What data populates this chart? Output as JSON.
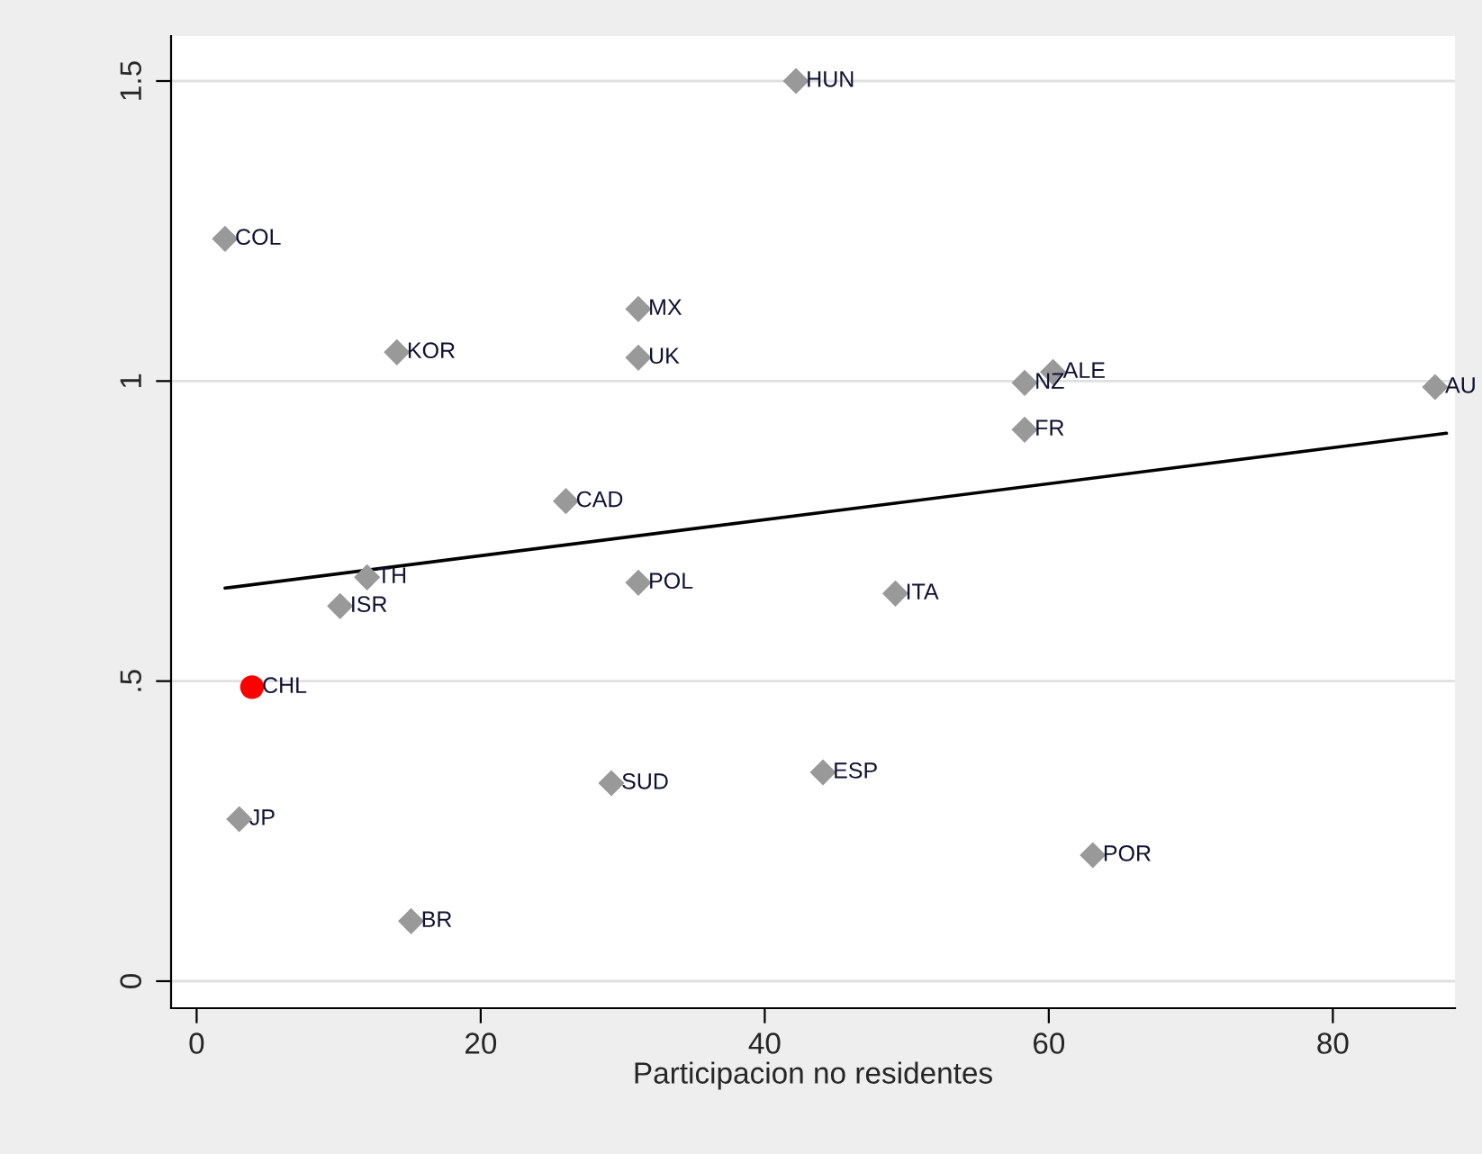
{
  "chart_data": {
    "type": "scatter",
    "xlabel": "Participacion no residentes",
    "xlim": [
      -1.8,
      88.6
    ],
    "xticks": [
      0,
      20,
      40,
      60,
      80
    ],
    "ylim": [
      -0.045,
      1.575
    ],
    "yticks": [
      {
        "value": 0,
        "label": "0"
      },
      {
        "value": 0.5,
        "label": ".5"
      },
      {
        "value": 1,
        "label": "1"
      },
      {
        "value": 1.5,
        "label": "1.5"
      }
    ],
    "grid": "y",
    "series": [
      {
        "marker": "diamond",
        "color": "#999999",
        "x": [
          42.2,
          2.0,
          31.1,
          14.1,
          31.1,
          58.3,
          60.3,
          87.2,
          58.3,
          26.0,
          12.0,
          10.1,
          31.1,
          49.2,
          29.2,
          44.1,
          3.0,
          63.1,
          15.1
        ],
        "values": [
          1.5,
          1.237,
          1.12,
          1.048,
          1.039,
          0.997,
          1.015,
          0.99,
          0.919,
          0.8,
          0.673,
          0.625,
          0.664,
          0.646,
          0.33,
          0.348,
          0.27,
          0.21,
          0.1
        ]
      },
      {
        "marker": "circle",
        "color": "#ff0000",
        "x": [
          3.9
        ],
        "values": [
          0.49
        ]
      },
      {
        "type": "line",
        "color": "#000000",
        "x": [
          2.0,
          88.0
        ],
        "values": [
          0.655,
          0.913
        ]
      }
    ],
    "annotations": [
      {
        "text": "HUN",
        "x": 42.2,
        "y": 1.5
      },
      {
        "text": "COL",
        "x": 2.0,
        "y": 1.237
      },
      {
        "text": "MX",
        "x": 31.1,
        "y": 1.12
      },
      {
        "text": "KOR",
        "x": 14.1,
        "y": 1.048
      },
      {
        "text": "UK",
        "x": 31.1,
        "y": 1.039
      },
      {
        "text": "NZ",
        "x": 58.3,
        "y": 0.997
      },
      {
        "text": "ALE",
        "x": 60.3,
        "y": 1.015
      },
      {
        "text": "AU",
        "x": 87.2,
        "y": 0.99
      },
      {
        "text": "FR",
        "x": 58.3,
        "y": 0.919
      },
      {
        "text": "CAD",
        "x": 26.0,
        "y": 0.8
      },
      {
        "text": "TH",
        "x": 12.0,
        "y": 0.673
      },
      {
        "text": "ISR",
        "x": 10.1,
        "y": 0.625
      },
      {
        "text": "POL",
        "x": 31.1,
        "y": 0.664
      },
      {
        "text": "ITA",
        "x": 49.2,
        "y": 0.646
      },
      {
        "text": "CHL",
        "x": 3.9,
        "y": 0.49
      },
      {
        "text": "SUD",
        "x": 29.2,
        "y": 0.33
      },
      {
        "text": "ESP",
        "x": 44.1,
        "y": 0.348
      },
      {
        "text": "JP",
        "x": 3.0,
        "y": 0.27
      },
      {
        "text": "POR",
        "x": 63.1,
        "y": 0.21
      },
      {
        "text": "BR",
        "x": 15.1,
        "y": 0.1
      }
    ]
  }
}
